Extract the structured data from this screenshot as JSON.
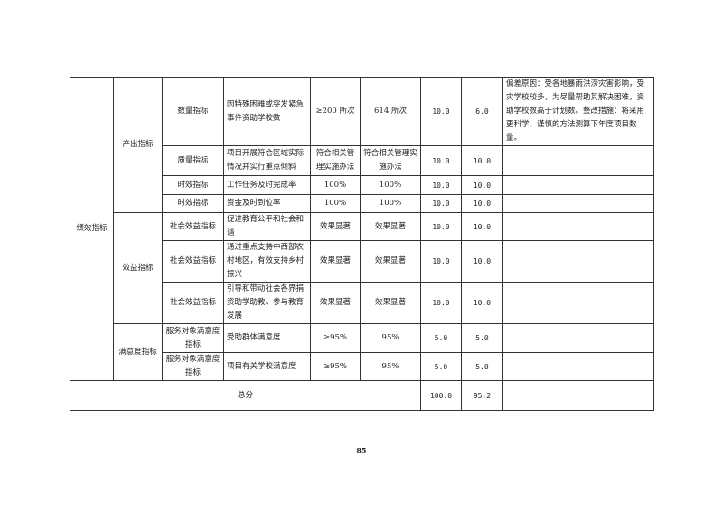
{
  "table": {
    "level1": "绩效指标",
    "groups": [
      {
        "label": "产出指标"
      },
      {
        "label": "效益指标"
      },
      {
        "label": "满意度指标"
      }
    ],
    "rows": [
      {
        "l2": "数量指标",
        "indicator": "因特殊困难或突发紧急事件资助学校数",
        "target": "≥200 所次",
        "actual": "614 所次",
        "weight": "10.0",
        "score": "6.0",
        "note": "偏差原因：受各地暴雨洪涝灾害影响，受灾学校较多，为尽量帮助其解决困难，资助学校数高于计划数。整改措施：将采用更科学、谨慎的方法测算下年度项目数量。"
      },
      {
        "l2": "质量指标",
        "indicator": "项目开展符合区域实际情况并实行重点倾斜",
        "target": "符合相关管理实施办法",
        "actual": "符合相关管理实施办法",
        "weight": "10.0",
        "score": "10.0",
        "note": ""
      },
      {
        "l2": "时效指标",
        "indicator": "工作任务及时完成率",
        "target": "100%",
        "actual": "100%",
        "weight": "10.0",
        "score": "10.0",
        "note": ""
      },
      {
        "l2": "时效指标",
        "indicator": "资金及时到位率",
        "target": "100%",
        "actual": "100%",
        "weight": "10.0",
        "score": "10.0",
        "note": ""
      },
      {
        "l2": "社会效益指标",
        "indicator": "促进教育公平和社会和谐",
        "target": "效果显著",
        "actual": "效果显著",
        "weight": "10.0",
        "score": "10.0",
        "note": ""
      },
      {
        "l2": "社会效益指标",
        "indicator": "通过重点支持中西部农村地区，有效支持乡村振兴",
        "target": "效果显著",
        "actual": "效果显著",
        "weight": "10.0",
        "score": "10.0",
        "note": ""
      },
      {
        "l2": "社会效益指标",
        "indicator": "引导和带动社会各界捐资助学助教、参与教育发展",
        "target": "效果显著",
        "actual": "效果显著",
        "weight": "10.0",
        "score": "10.0",
        "note": ""
      },
      {
        "l2": "服务对象满意度指标",
        "indicator": "受助群体满意度",
        "target": "≥95%",
        "actual": "95%",
        "weight": "5.0",
        "score": "5.0",
        "note": ""
      },
      {
        "l2": "服务对象满意度指标",
        "indicator": "项目有关学校满意度",
        "target": "≥95%",
        "actual": "95%",
        "weight": "5.0",
        "score": "5.0",
        "note": ""
      }
    ],
    "total": {
      "label": "总分",
      "weight": "100.0",
      "score": "95.2",
      "note": ""
    }
  },
  "page_number": "85"
}
